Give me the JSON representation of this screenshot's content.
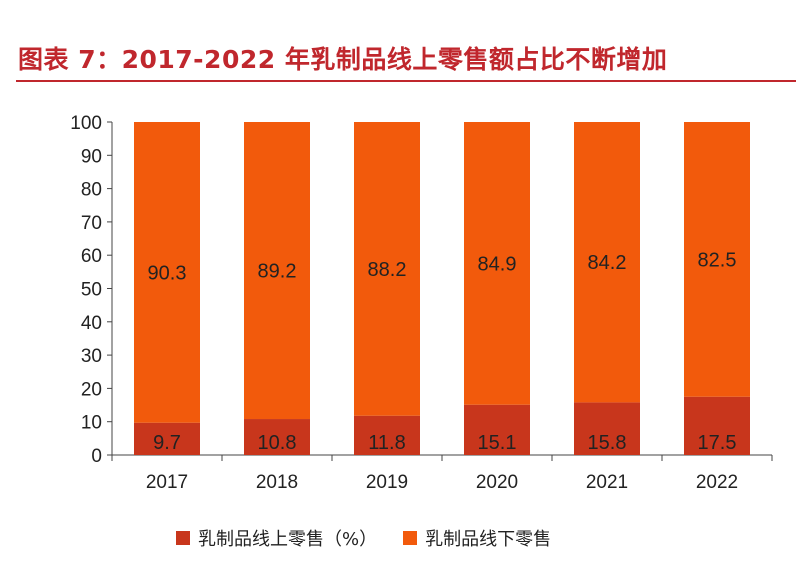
{
  "title": "图表 7：2017-2022 年乳制品线上零售额占比不断增加",
  "colors": {
    "title": "#c0272d",
    "online": "#c8361c",
    "offline": "#f25a0c",
    "axis": "#444444"
  },
  "chart_data": {
    "type": "bar",
    "stacked": true,
    "categories": [
      "2017",
      "2018",
      "2019",
      "2020",
      "2021",
      "2022"
    ],
    "series": [
      {
        "name": "乳制品线上零售（%）",
        "values": [
          9.7,
          10.8,
          11.8,
          15.1,
          15.8,
          17.5
        ]
      },
      {
        "name": "乳制品线下零售",
        "values": [
          90.3,
          89.2,
          88.2,
          84.9,
          84.2,
          82.5
        ]
      }
    ],
    "ylim": [
      0,
      100
    ],
    "yticks": [
      0,
      10,
      20,
      30,
      40,
      50,
      60,
      70,
      80,
      90,
      100
    ],
    "grid": false,
    "legend": "bottom"
  }
}
